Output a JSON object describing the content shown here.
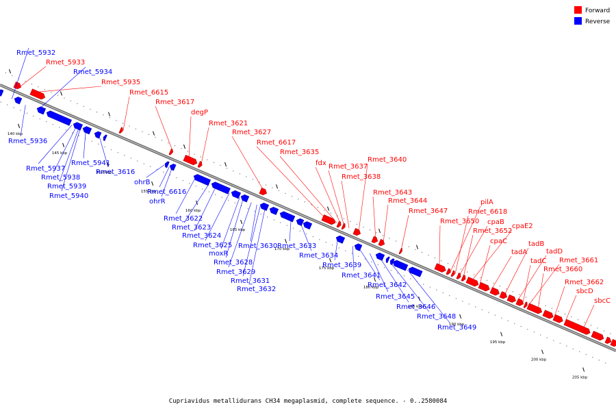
{
  "caption": "Cupriavidus metallidurans CH34 megaplasmid, complete sequence. - 0..2580084",
  "legend": [
    {
      "label": "Forward",
      "color": "#ff0000"
    },
    {
      "label": "Reverse",
      "color": "#0000ff"
    }
  ],
  "ticks": [
    "140 kbp",
    "145 kbp",
    "150 kbp",
    "155 kbp",
    "160 kbp",
    "165 kbp",
    "170 kbp",
    "175 kbp",
    "180 kbp",
    "185 kbp",
    "190 kbp",
    "195 kbp",
    "200 kbp",
    "205 kbp"
  ],
  "forward_labels": [
    "Rmet_5933",
    "Rmet_5935",
    "Rmet_6615",
    "Rmet_3617",
    "degP",
    "Rmet_3621",
    "Rmet_3627",
    "Rmet_6617",
    "Rmet_3635",
    "fdx",
    "Rmet_3637",
    "Rmet_3638",
    "Rmet_3640",
    "Rmet_3643",
    "Rmet_3644",
    "Rmet_3647",
    "Rmet_3650",
    "pilA",
    "Rmet_6618",
    "cpaB",
    "Rmet_3652",
    "cpaE2",
    "cpaC",
    "tadA",
    "tadB",
    "tadD",
    "tadC",
    "Rmet_3661",
    "Rmet_3660",
    "Rmet_3662",
    "sbcD",
    "sbcC"
  ],
  "reverse_labels": [
    "Rmet_5932",
    "Rmet_5934",
    "Rmet_5936",
    "Rmet_5937",
    "Rmet_5938",
    "Rmet_5939",
    "Rmet_5940",
    "Rmet_5941",
    "Rmet_3616",
    "ohrB",
    "Rmet_6616",
    "ohrR",
    "Rmet_3622",
    "Rmet_3623",
    "Rmet_3624",
    "Rmet_3625",
    "moxR",
    "Rmet_3628",
    "Rmet_3629",
    "Rmet_3630",
    "Rmet_3631",
    "Rmet_3632",
    "Rmet_3633",
    "Rmet_3634",
    "Rmet_3639",
    "Rmet_3641",
    "Rmet_3642",
    "Rmet_3645",
    "Rmet_3646",
    "Rmet_3648",
    "Rmet_3649"
  ]
}
